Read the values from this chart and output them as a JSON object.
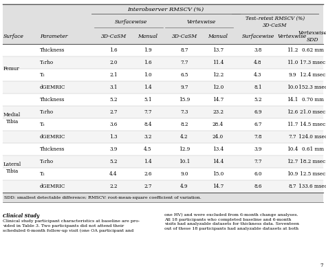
{
  "title_main": "Interobserver RMSCV (%)",
  "rows": [
    [
      "Femur",
      "Thickness",
      "1.6",
      "1.9",
      "8.7",
      "13.7",
      "3.8",
      "11.2",
      "0.62 mm"
    ],
    [
      "",
      "T₁rho",
      "2.0",
      "1.6",
      "7.7",
      "11.4",
      "4.8",
      "11.0",
      "17.3 msec"
    ],
    [
      "",
      "T₂",
      "2.1",
      "1.0",
      "6.5",
      "12.2",
      "4.3",
      "9.9",
      "12.4 msec"
    ],
    [
      "",
      "dGEMRIC",
      "3.1",
      "1.4",
      "9.7",
      "12.0",
      "8.1",
      "10.0",
      "152.3 msec"
    ],
    [
      "Medial\nTibia",
      "Thickness",
      "5.2",
      "5.1",
      "15.9",
      "14.7",
      "5.2",
      "14.1",
      "0.70 mm"
    ],
    [
      "",
      "T₁rho",
      "2.7",
      "7.7",
      "7.3",
      "23.2",
      "6.9",
      "12.6",
      "21.0 msec"
    ],
    [
      "",
      "T₂",
      "3.6",
      "8.4",
      "8.2",
      "28.4",
      "6.7",
      "11.7",
      "14.5 msec"
    ],
    [
      "",
      "dGEMRIC",
      "1.3",
      "3.2",
      "4.2",
      "24.0",
      "7.8",
      "7.7",
      "124.0 msec"
    ],
    [
      "Lateral\nTibia",
      "Thickness",
      "3.9",
      "4.5",
      "12.9",
      "13.4",
      "3.9",
      "10.4",
      "0.61 mm"
    ],
    [
      "",
      "T₁rho",
      "5.2",
      "1.4",
      "10.1",
      "14.4",
      "7.7",
      "12.7",
      "18.2 msec"
    ],
    [
      "",
      "T₂",
      "4.4",
      "2.6",
      "9.0",
      "15.0",
      "6.0",
      "10.9",
      "12.5 msec"
    ],
    [
      "",
      "dGEMRIC",
      "2.2",
      "2.7",
      "4.9",
      "14.7",
      "8.6",
      "8.7",
      "133.6 msec"
    ]
  ],
  "footer": "SDD: smallest detectable difference; RMSCV: root-mean-square coefficient of variation.",
  "clinical_left_title": "Clinical Study",
  "clinical_left": "linical study participant characteristics at baseline are pro-\nded in Table 3. Two participants did not attend their\nheduled 6-month follow-up visit (one OA participant and",
  "clinical_right": "one HV) and were excluded from 6-month change analyses.\nAll 18 participants who completed baseline and 6-month\nvisits had analyzable datasets for thickness data. Seventeen\nout of these 18 participants had analyzable datasets at both",
  "page_num": "7",
  "header_bg": "#e2e2e2",
  "white_bg": "#ffffff",
  "alt_bg": "#f5f5f5",
  "font_size_title": 6.0,
  "font_size_header": 5.5,
  "font_size_data": 5.2,
  "font_size_footer": 4.6,
  "font_size_body": 4.6
}
